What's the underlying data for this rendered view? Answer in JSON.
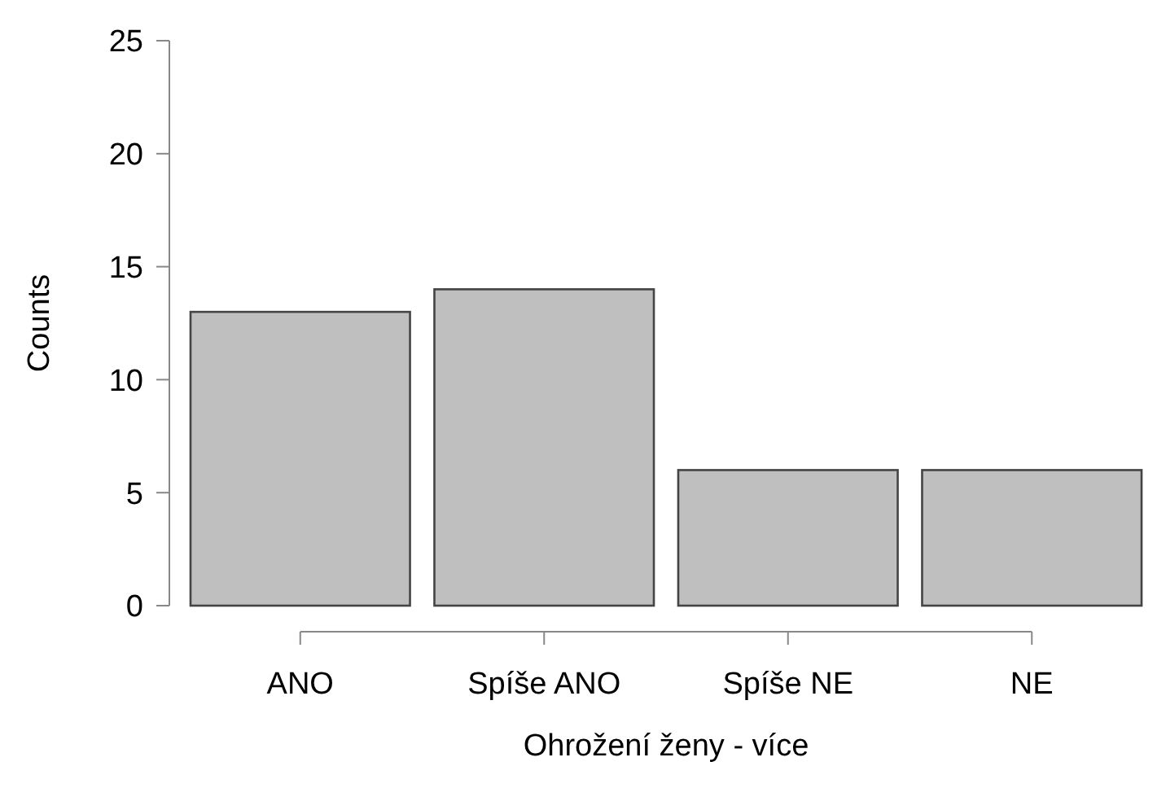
{
  "chart_data": {
    "type": "bar",
    "xlabel": "Ohrožení ženy - více",
    "ylabel": "Counts",
    "categories": [
      "ANO",
      "Spíše ANO",
      "Spíše NE",
      "NE"
    ],
    "values": [
      13,
      14,
      6,
      6
    ],
    "color": "#bfbfbf",
    "ylim": [
      0,
      25
    ],
    "yticks": [
      0,
      5,
      10,
      15,
      20,
      25
    ],
    "grid": false
  }
}
